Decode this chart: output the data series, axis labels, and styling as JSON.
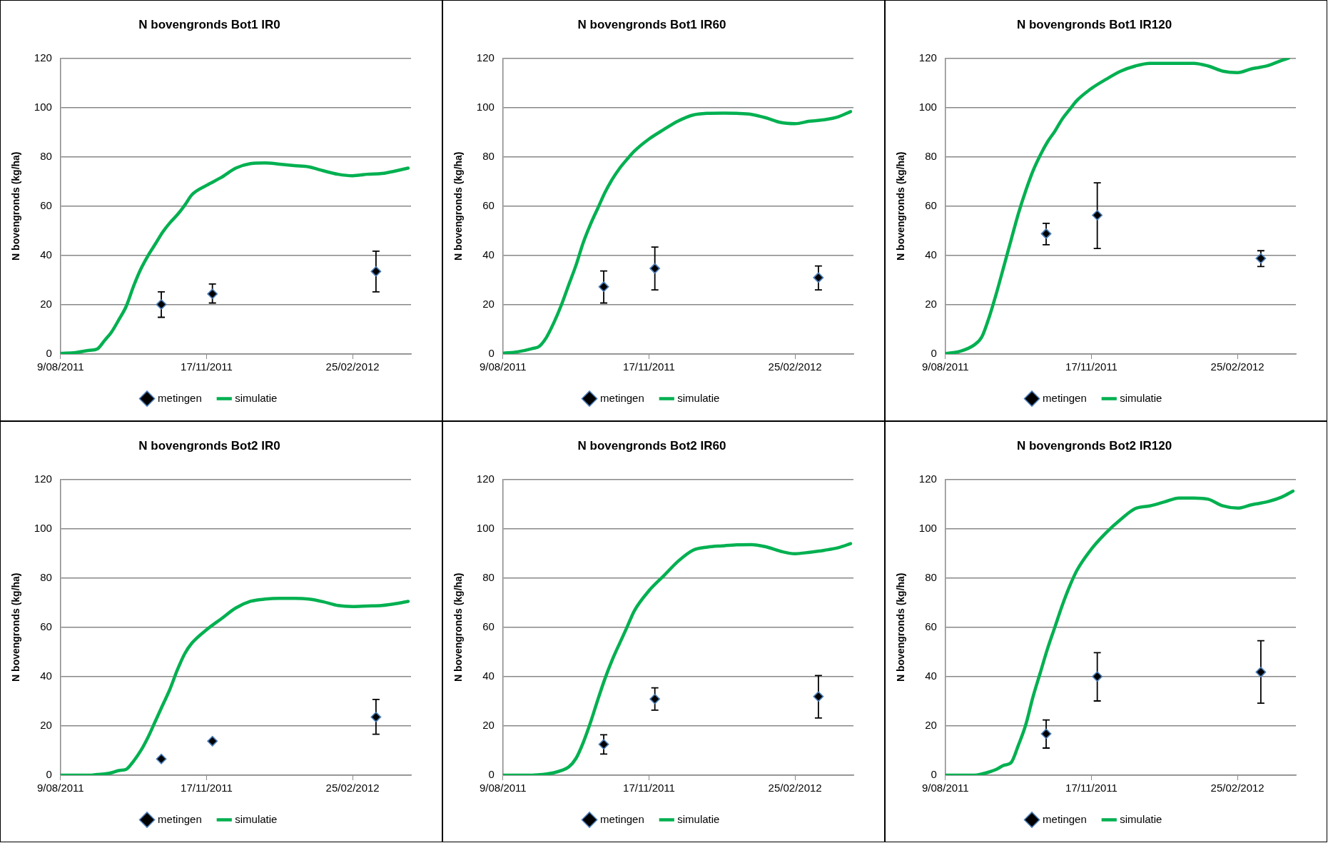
{
  "chart_data": [
    {
      "type": "line",
      "title": "N bovengronds Bot1 IR0",
      "ylabel": "N bovengronds (kg/ha)",
      "xlim": [
        "2011-08-09",
        "2012-04-05"
      ],
      "xticks": [
        {
          "value": "2011-08-09",
          "label": "9/08/2011"
        },
        {
          "value": "2011-11-17",
          "label": "17/11/2011"
        },
        {
          "value": "2012-02-25",
          "label": "25/02/2012"
        }
      ],
      "ylim": [
        0,
        120
      ],
      "yticks": [
        0,
        20,
        40,
        60,
        80,
        100,
        120
      ],
      "grid": "y",
      "legend": "bottom",
      "series": [
        {
          "name": "metingen",
          "type": "scatter",
          "marker": "diamond",
          "color": "#000000",
          "x": [
            "2011-10-17",
            "2011-11-21",
            "2012-03-12"
          ],
          "values": [
            20.1,
            24.4,
            33.5
          ],
          "errors": [
            [
              14.9,
              25.2
            ],
            [
              20.7,
              28.4
            ],
            [
              25.2,
              41.7
            ]
          ]
        },
        {
          "name": "simulatie",
          "type": "line",
          "line_style": "solid",
          "color": "#00b050",
          "x": [
            "2011-08-09",
            "2011-08-19",
            "2011-08-29",
            "2011-09-03",
            "2011-09-08",
            "2011-09-13",
            "2011-09-18",
            "2011-09-23",
            "2011-09-28",
            "2011-10-03",
            "2011-10-08",
            "2011-10-13",
            "2011-10-18",
            "2011-10-23",
            "2011-10-28",
            "2011-11-02",
            "2011-11-07",
            "2011-11-17",
            "2011-11-27",
            "2011-12-07",
            "2011-12-17",
            "2011-12-27",
            "2012-01-06",
            "2012-01-16",
            "2012-01-26",
            "2012-02-05",
            "2012-02-15",
            "2012-02-25",
            "2012-03-06",
            "2012-03-16",
            "2012-03-26",
            "2012-04-03"
          ],
          "values": [
            0.3,
            0.6,
            1.5,
            2,
            5.4,
            9,
            14,
            19.4,
            27.5,
            34.5,
            40,
            44.7,
            49.5,
            53.3,
            56.5,
            60.3,
            64.6,
            68.4,
            71.6,
            75.4,
            77.2,
            77.5,
            77,
            76.4,
            75.9,
            74.3,
            72.9,
            72.3,
            72.9,
            73.2,
            74.3,
            75.4
          ]
        }
      ]
    },
    {
      "type": "line",
      "title": "N bovengronds Bot1 IR60",
      "ylabel": "N bovengronds (kg/ha)",
      "xlim": [
        "2011-08-09",
        "2012-04-05"
      ],
      "xticks": [
        {
          "value": "2011-08-09",
          "label": "9/08/2011"
        },
        {
          "value": "2011-11-17",
          "label": "17/11/2011"
        },
        {
          "value": "2012-02-25",
          "label": "25/02/2012"
        }
      ],
      "ylim": [
        0,
        120
      ],
      "yticks": [
        0,
        20,
        40,
        60,
        80,
        100,
        120
      ],
      "grid": "y",
      "legend": "bottom",
      "series": [
        {
          "name": "metingen",
          "type": "scatter",
          "marker": "diamond",
          "color": "#000000",
          "x": [
            "2011-10-17",
            "2011-11-21",
            "2012-03-12"
          ],
          "values": [
            27.3,
            34.7,
            31
          ],
          "errors": [
            [
              20.7,
              33.7
            ],
            [
              26,
              43.4
            ],
            [
              26,
              35.7
            ]
          ]
        },
        {
          "name": "simulatie",
          "type": "line",
          "line_style": "solid",
          "color": "#00b050",
          "x": [
            "2011-08-09",
            "2011-08-19",
            "2011-08-29",
            "2011-09-03",
            "2011-09-08",
            "2011-09-13",
            "2011-09-18",
            "2011-09-23",
            "2011-09-28",
            "2011-10-03",
            "2011-10-08",
            "2011-10-13",
            "2011-10-18",
            "2011-10-23",
            "2011-10-28",
            "2011-11-02",
            "2011-11-07",
            "2011-11-17",
            "2011-11-27",
            "2011-12-07",
            "2011-12-17",
            "2011-12-27",
            "2012-01-06",
            "2012-01-16",
            "2012-01-26",
            "2012-02-05",
            "2012-02-15",
            "2012-02-25",
            "2012-03-06",
            "2012-03-16",
            "2012-03-26",
            "2012-04-03"
          ],
          "values": [
            0.3,
            0.9,
            2.2,
            3.2,
            7,
            12.9,
            19.9,
            28,
            36,
            45.2,
            52.7,
            59.2,
            65.7,
            71,
            75.4,
            79,
            82.3,
            87.2,
            91,
            94.5,
            96.9,
            97.6,
            97.7,
            97.6,
            97.2,
            95.8,
            93.9,
            93.4,
            94.4,
            95,
            96.3,
            98.3
          ]
        }
      ]
    },
    {
      "type": "line",
      "title": "N bovengronds Bot1 IR120",
      "ylabel": "N bovengronds (kg/ha)",
      "xlim": [
        "2011-08-09",
        "2012-04-05"
      ],
      "xticks": [
        {
          "value": "2011-08-09",
          "label": "9/08/2011"
        },
        {
          "value": "2011-11-17",
          "label": "17/11/2011"
        },
        {
          "value": "2012-02-25",
          "label": "25/02/2012"
        }
      ],
      "ylim": [
        0,
        120
      ],
      "yticks": [
        0,
        20,
        40,
        60,
        80,
        100,
        120
      ],
      "grid": "y",
      "legend": "bottom",
      "series": [
        {
          "name": "metingen",
          "type": "scatter",
          "marker": "diamond",
          "color": "#000000",
          "x": [
            "2011-10-17",
            "2011-11-21",
            "2012-03-12"
          ],
          "values": [
            48.8,
            56.3,
            38.8
          ],
          "errors": [
            [
              44.3,
              53
            ],
            [
              42.8,
              69.4
            ],
            [
              35.5,
              41.9
            ]
          ]
        },
        {
          "name": "simulatie",
          "type": "line",
          "line_style": "solid",
          "color": "#00b050",
          "x": [
            "2011-08-09",
            "2011-08-19",
            "2011-08-29",
            "2011-09-03",
            "2011-09-08",
            "2011-09-13",
            "2011-09-18",
            "2011-09-23",
            "2011-09-28",
            "2011-10-03",
            "2011-10-08",
            "2011-10-13",
            "2011-10-18",
            "2011-10-23",
            "2011-10-28",
            "2011-11-02",
            "2011-11-07",
            "2011-11-17",
            "2011-11-27",
            "2011-12-07",
            "2011-12-17",
            "2011-12-27",
            "2012-01-06",
            "2012-01-16",
            "2012-01-26",
            "2012-02-05",
            "2012-02-15",
            "2012-02-25",
            "2012-03-06",
            "2012-03-16",
            "2012-03-26",
            "2012-03-31"
          ],
          "values": [
            0.2,
            1.1,
            3.8,
            7,
            15,
            24.8,
            35.5,
            46.3,
            57,
            66.2,
            74.3,
            80.7,
            86.1,
            90.4,
            95.3,
            99.1,
            102.8,
            107.7,
            111.4,
            114.7,
            116.8,
            117.9,
            117.9,
            117.9,
            117.9,
            116.8,
            114.7,
            114.1,
            115.7,
            116.8,
            119,
            120
          ]
        }
      ]
    },
    {
      "type": "line",
      "title": "N bovengronds Bot2 IR0",
      "ylabel": "N bovengronds (kg/ha)",
      "xlim": [
        "2011-08-09",
        "2012-04-05"
      ],
      "xticks": [
        {
          "value": "2011-08-09",
          "label": "9/08/2011"
        },
        {
          "value": "2011-11-17",
          "label": "17/11/2011"
        },
        {
          "value": "2012-02-25",
          "label": "25/02/2012"
        }
      ],
      "ylim": [
        0,
        120
      ],
      "yticks": [
        0,
        20,
        40,
        60,
        80,
        100,
        120
      ],
      "grid": "y",
      "legend": "bottom",
      "series": [
        {
          "name": "metingen",
          "type": "scatter",
          "marker": "diamond",
          "color": "#000000",
          "x": [
            "2011-10-17",
            "2011-11-21",
            "2012-03-12"
          ],
          "values": [
            6.6,
            13.8,
            23.6
          ],
          "errors": [
            [
              5.5,
              7.8
            ],
            [
              13,
              14.6
            ],
            [
              16.6,
              30.7
            ]
          ]
        },
        {
          "name": "simulatie",
          "type": "line",
          "line_style": "solid",
          "color": "#00b050",
          "x": [
            "2011-08-09",
            "2011-08-19",
            "2011-08-29",
            "2011-09-03",
            "2011-09-08",
            "2011-09-13",
            "2011-09-18",
            "2011-09-23",
            "2011-09-28",
            "2011-10-03",
            "2011-10-08",
            "2011-10-13",
            "2011-10-18",
            "2011-10-23",
            "2011-10-28",
            "2011-11-02",
            "2011-11-07",
            "2011-11-17",
            "2011-11-27",
            "2011-12-07",
            "2011-12-17",
            "2011-12-27",
            "2012-01-06",
            "2012-01-16",
            "2012-01-26",
            "2012-02-05",
            "2012-02-15",
            "2012-02-25",
            "2012-03-06",
            "2012-03-16",
            "2012-03-26",
            "2012-04-03"
          ],
          "values": [
            0,
            0,
            0,
            0.3,
            0.5,
            1,
            1.9,
            2.4,
            5.7,
            10,
            15.5,
            22,
            28.5,
            35,
            42.7,
            49.2,
            53.6,
            59,
            63.4,
            67.8,
            70.5,
            71.4,
            71.7,
            71.7,
            71.4,
            70.3,
            68.8,
            68.4,
            68.6,
            68.8,
            69.6,
            70.5
          ]
        }
      ]
    },
    {
      "type": "line",
      "title": "N bovengronds Bot2 IR60",
      "ylabel": "N bovengronds (kg/ha)",
      "xlim": [
        "2011-08-09",
        "2012-04-05"
      ],
      "xticks": [
        {
          "value": "2011-08-09",
          "label": "9/08/2011"
        },
        {
          "value": "2011-11-17",
          "label": "17/11/2011"
        },
        {
          "value": "2012-02-25",
          "label": "25/02/2012"
        }
      ],
      "ylim": [
        0,
        120
      ],
      "yticks": [
        0,
        20,
        40,
        60,
        80,
        100,
        120
      ],
      "grid": "y",
      "legend": "bottom",
      "series": [
        {
          "name": "metingen",
          "type": "scatter",
          "marker": "diamond",
          "color": "#000000",
          "x": [
            "2011-10-17",
            "2011-11-21",
            "2012-03-12"
          ],
          "values": [
            12.5,
            30.9,
            31.9
          ],
          "errors": [
            [
              8.6,
              16.4
            ],
            [
              26.4,
              35.4
            ],
            [
              23.2,
              40.4
            ]
          ]
        },
        {
          "name": "simulatie",
          "type": "line",
          "line_style": "solid",
          "color": "#00b050",
          "x": [
            "2011-08-09",
            "2011-08-19",
            "2011-08-29",
            "2011-09-03",
            "2011-09-08",
            "2011-09-13",
            "2011-09-18",
            "2011-09-23",
            "2011-09-28",
            "2011-10-03",
            "2011-10-08",
            "2011-10-13",
            "2011-10-18",
            "2011-10-23",
            "2011-10-28",
            "2011-11-02",
            "2011-11-07",
            "2011-11-17",
            "2011-11-27",
            "2011-12-07",
            "2011-12-17",
            "2011-12-27",
            "2012-01-06",
            "2012-01-16",
            "2012-01-26",
            "2012-02-05",
            "2012-02-15",
            "2012-02-25",
            "2012-03-06",
            "2012-03-16",
            "2012-03-26",
            "2012-04-03"
          ],
          "values": [
            0,
            0,
            0,
            0.2,
            0.5,
            1,
            1.9,
            3.3,
            6.8,
            13.3,
            21.5,
            30.7,
            39.4,
            47,
            53.6,
            60.1,
            66.7,
            74.8,
            80.8,
            86.8,
            91.2,
            92.5,
            93,
            93.4,
            93.5,
            92.6,
            90.8,
            89.8,
            90.4,
            91.2,
            92.3,
            93.9
          ]
        }
      ]
    },
    {
      "type": "line",
      "title": "N bovengronds Bot2 IR120",
      "ylabel": "N bovengronds (kg/ha)",
      "xlim": [
        "2011-08-09",
        "2012-04-05"
      ],
      "xticks": [
        {
          "value": "2011-08-09",
          "label": "9/08/2011"
        },
        {
          "value": "2011-11-17",
          "label": "17/11/2011"
        },
        {
          "value": "2012-02-25",
          "label": "25/02/2012"
        }
      ],
      "ylim": [
        0,
        120
      ],
      "yticks": [
        0,
        20,
        40,
        60,
        80,
        100,
        120
      ],
      "grid": "y",
      "legend": "bottom",
      "series": [
        {
          "name": "metingen",
          "type": "scatter",
          "marker": "diamond",
          "color": "#000000",
          "x": [
            "2011-10-17",
            "2011-11-21",
            "2012-03-12"
          ],
          "values": [
            16.8,
            40,
            41.8
          ],
          "errors": [
            [
              11,
              22.4
            ],
            [
              30.1,
              49.7
            ],
            [
              29.2,
              54.5
            ]
          ]
        },
        {
          "name": "simulatie",
          "type": "line",
          "line_style": "solid",
          "color": "#00b050",
          "x": [
            "2011-08-09",
            "2011-08-19",
            "2011-08-29",
            "2011-09-03",
            "2011-09-08",
            "2011-09-13",
            "2011-09-18",
            "2011-09-23",
            "2011-09-28",
            "2011-10-03",
            "2011-10-08",
            "2011-10-13",
            "2011-10-18",
            "2011-10-23",
            "2011-10-28",
            "2011-11-02",
            "2011-11-07",
            "2011-11-17",
            "2011-11-27",
            "2011-12-07",
            "2011-12-17",
            "2011-12-27",
            "2012-01-06",
            "2012-01-16",
            "2012-01-26",
            "2012-02-05",
            "2012-02-15",
            "2012-02-25",
            "2012-03-06",
            "2012-03-16",
            "2012-03-26",
            "2012-04-03"
          ],
          "values": [
            0,
            0,
            0,
            0.5,
            1.3,
            2.4,
            4,
            5.1,
            12.2,
            20.4,
            31.8,
            41.6,
            51.4,
            60.1,
            68.8,
            76.5,
            83,
            91.7,
            98.3,
            103.7,
            108.1,
            109.2,
            110.8,
            112.4,
            112.4,
            111.9,
            109.2,
            108.3,
            109.7,
            110.8,
            112.7,
            115.2
          ]
        }
      ]
    }
  ]
}
